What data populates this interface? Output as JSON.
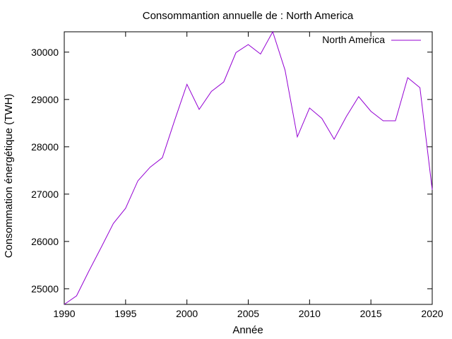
{
  "chart_data": {
    "type": "line",
    "title": "Consommantion annuelle de : North America",
    "xlabel": "Année",
    "ylabel": "Consommation énergétique (TWH)",
    "xlim": [
      1990,
      2020
    ],
    "ylim": [
      24670,
      30430
    ],
    "x_ticks": [
      1990,
      1995,
      2000,
      2005,
      2010,
      2015,
      2020
    ],
    "y_ticks": [
      25000,
      26000,
      27000,
      28000,
      29000,
      30000
    ],
    "grid": false,
    "legend_position": "top-right",
    "series": [
      {
        "name": "North America",
        "color": "#9400d3",
        "x": [
          1990,
          1991,
          1992,
          1993,
          1994,
          1995,
          1996,
          1997,
          1998,
          1999,
          2000,
          2001,
          2002,
          2003,
          2004,
          2005,
          2006,
          2007,
          2008,
          2009,
          2010,
          2011,
          2012,
          2013,
          2014,
          2015,
          2016,
          2017,
          2018,
          2019,
          2020
        ],
        "values": [
          24670,
          24850,
          25370,
          25870,
          26380,
          26700,
          27280,
          27570,
          27770,
          28560,
          29320,
          28790,
          29170,
          29370,
          29990,
          30160,
          29960,
          30430,
          29620,
          28210,
          28820,
          28600,
          28160,
          28640,
          29060,
          28750,
          28550,
          28550,
          29460,
          29250,
          27090
        ]
      }
    ]
  }
}
